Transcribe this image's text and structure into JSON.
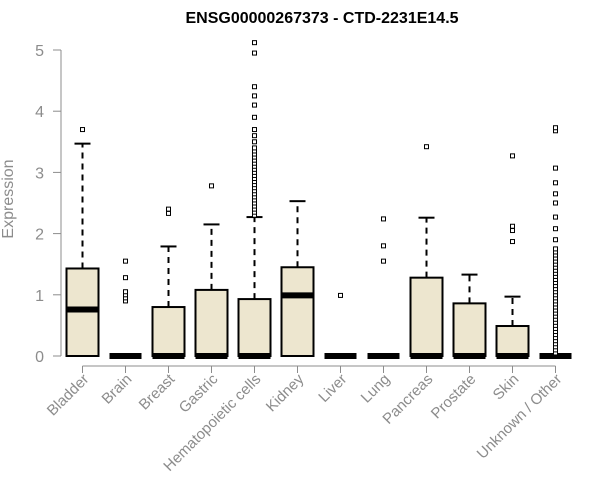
{
  "chart_data": {
    "type": "boxplot",
    "title": "ENSG00000267373 - CTD-2231E14.5",
    "xlabel": "",
    "ylabel": "Expression",
    "ylim": [
      0,
      5.2
    ],
    "yticks": [
      0,
      1,
      2,
      3,
      4,
      5
    ],
    "grid": false,
    "box_color": "#ede6cf",
    "categories": [
      "Bladder",
      "Brain",
      "Breast",
      "Gastric",
      "Hematopoietic cells",
      "Kidney",
      "Liver",
      "Lung",
      "Pancreas",
      "Prostate",
      "Skin",
      "Unknown / Other"
    ],
    "boxes": [
      {
        "q1": 0,
        "median": 0.76,
        "q3": 1.43,
        "whisker_low": 0,
        "whisker_high": 3.47,
        "outliers": [
          3.7
        ]
      },
      {
        "q1": 0,
        "median": 0,
        "q3": 0,
        "whisker_low": 0,
        "whisker_high": 0,
        "outliers": [
          0.9,
          0.95,
          1.0,
          1.05,
          1.28,
          1.55
        ]
      },
      {
        "q1": 0,
        "median": 0,
        "q3": 0.8,
        "whisker_low": 0,
        "whisker_high": 1.79,
        "outliers": [
          2.33,
          2.4
        ]
      },
      {
        "q1": 0,
        "median": 0,
        "q3": 1.08,
        "whisker_low": 0,
        "whisker_high": 2.15,
        "outliers": [
          2.78
        ]
      },
      {
        "q1": 0,
        "median": 0,
        "q3": 0.93,
        "whisker_low": 0,
        "whisker_high": 2.27,
        "outliers": [
          2.3,
          2.35,
          2.4,
          2.45,
          2.5,
          2.55,
          2.6,
          2.65,
          2.7,
          2.75,
          2.8,
          2.85,
          2.9,
          2.95,
          3.0,
          3.05,
          3.1,
          3.15,
          3.2,
          3.25,
          3.3,
          3.35,
          3.4,
          3.5,
          3.6,
          3.7,
          3.9,
          4.1,
          4.25,
          4.4,
          4.95,
          5.12
        ]
      },
      {
        "q1": 0,
        "median": 0.99,
        "q3": 1.45,
        "whisker_low": 0,
        "whisker_high": 2.53,
        "outliers": []
      },
      {
        "q1": 0,
        "median": 0,
        "q3": 0,
        "whisker_low": 0,
        "whisker_high": 0,
        "outliers": [
          0.99
        ]
      },
      {
        "q1": 0,
        "median": 0,
        "q3": 0,
        "whisker_low": 0,
        "whisker_high": 0,
        "outliers": [
          1.55,
          1.8,
          2.24
        ]
      },
      {
        "q1": 0,
        "median": 0,
        "q3": 1.28,
        "whisker_low": 0,
        "whisker_high": 2.26,
        "outliers": [
          3.42
        ]
      },
      {
        "q1": 0,
        "median": 0,
        "q3": 0.86,
        "whisker_low": 0,
        "whisker_high": 1.33,
        "outliers": []
      },
      {
        "q1": 0,
        "median": 0,
        "q3": 0.49,
        "whisker_low": 0,
        "whisker_high": 0.97,
        "outliers": [
          1.87,
          2.05,
          2.12,
          3.27
        ]
      },
      {
        "q1": 0,
        "median": 0,
        "q3": 0,
        "whisker_low": 0,
        "whisker_high": 0,
        "outliers": [
          0.05,
          0.1,
          0.15,
          0.2,
          0.25,
          0.3,
          0.35,
          0.4,
          0.45,
          0.5,
          0.55,
          0.6,
          0.65,
          0.7,
          0.75,
          0.8,
          0.85,
          0.9,
          0.95,
          1.0,
          1.05,
          1.1,
          1.15,
          1.2,
          1.25,
          1.3,
          1.35,
          1.4,
          1.45,
          1.5,
          1.55,
          1.6,
          1.65,
          1.7,
          1.75,
          1.9,
          2.08,
          2.27,
          2.5,
          2.65,
          2.83,
          3.07,
          3.68,
          3.73
        ]
      }
    ]
  }
}
